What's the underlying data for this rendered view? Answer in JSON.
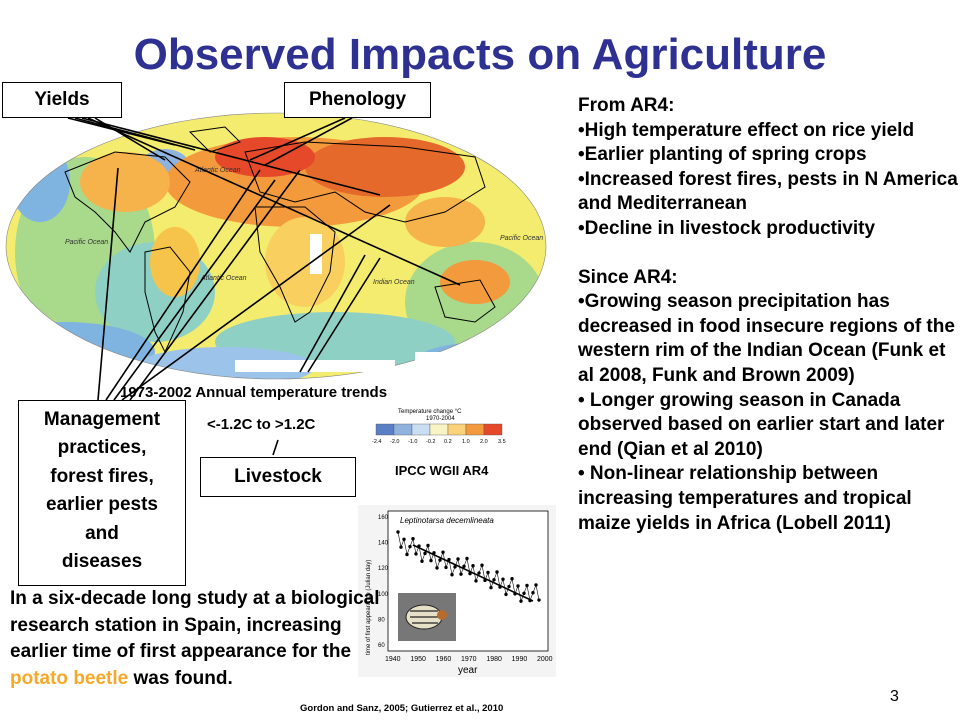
{
  "slide": {
    "title": "Observed Impacts on Agriculture",
    "slide_number": "3"
  },
  "labels": {
    "yields": "Yields",
    "phenology": "Phenology",
    "management_lines": [
      "Management",
      "practices,",
      "forest fires,",
      "earlier pests",
      "and",
      "diseases"
    ],
    "livestock": "Livestock"
  },
  "map": {
    "caption": "1973-2002 Annual temperature trends",
    "range": "<-1.2C to >1.2C",
    "source": "IPCC WGII AR4",
    "ocean_labels": [
      "Atlantic Ocean",
      "Pacific Ocean",
      "Pacific Ocean",
      "Indian Ocean",
      "Atlantic Ocean"
    ],
    "legend_title": "Temperature change °C",
    "legend_years": "1970-2004",
    "legend_ticks": [
      "-2.4",
      "-2.0",
      "-1.0",
      "-0.2",
      "0.2",
      "1.0",
      "2.0",
      "3.5"
    ],
    "legend_colors": [
      "#5b7fc4",
      "#8fb3de",
      "#c9def2",
      "#f8f4c6",
      "#fbd279",
      "#f39a3d",
      "#e5492a"
    ]
  },
  "inset_chart": {
    "species": "Leptinotarsa decemlineata",
    "ylabel": "time of first appearance (Julian day)",
    "xlabel": "year",
    "x_ticks": [
      "1940",
      "1950",
      "1960",
      "1970",
      "1980",
      "1990",
      "2000"
    ],
    "y_ticks": [
      "60",
      "80",
      "100",
      "120",
      "140",
      "160"
    ]
  },
  "right_column": {
    "ar4_heading": "From AR4:",
    "ar4_bullets": [
      "•High temperature effect on rice yield",
      "•Earlier planting of spring crops",
      "•Increased forest fires, pests in N America and Mediterranean",
      "•Decline in livestock productivity"
    ],
    "since_heading": "Since AR4:",
    "since_bullets": [
      "•Growing season precipitation has decreased in food insecure regions of the western rim of the Indian Ocean (Funk et al 2008, Funk and Brown 2009)",
      "• Longer growing season in Canada observed based on earlier start and later end (Qian et al 2010)",
      "• Non-linear relationship between increasing temperatures and tropical maize yields in Africa (Lobell 2011)"
    ]
  },
  "study_text": {
    "before": "In a six-decade long study at a biological research station in Spain, increasing earlier time of first appearance for the ",
    "highlight": "potato beetle",
    "after": " was found."
  },
  "footnote": "Gordon and Sanz, 2005; Gutierrez et al., 2010"
}
